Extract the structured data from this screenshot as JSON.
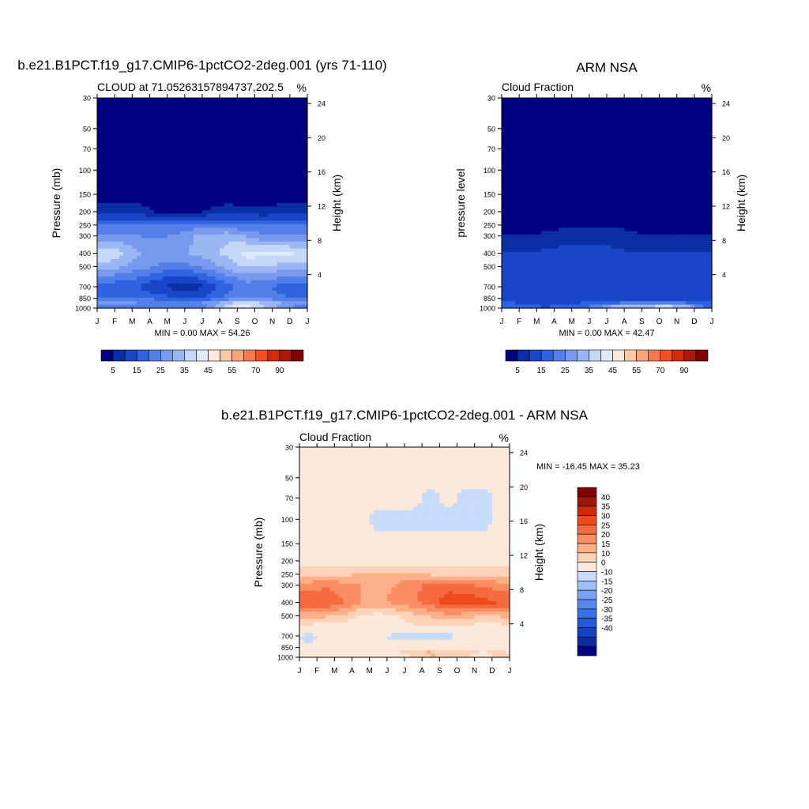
{
  "colors": {
    "abs_levels": [
      "#000080",
      "#0a2fa5",
      "#1846c6",
      "#2f63e0",
      "#527fe8",
      "#7799ee",
      "#9ab6f3",
      "#c6d8f8",
      "#e0ebfa",
      "#fde9d9",
      "#fcc9a8",
      "#fba47c",
      "#f77a4f",
      "#f54d24",
      "#d52b0a",
      "#a81a0a",
      "#7f0000"
    ],
    "diff_levels": [
      "#000080",
      "#0b2da0",
      "#1442c0",
      "#2458d8",
      "#3a6ee6",
      "#5888ee",
      "#7aa2f2",
      "#a1bff6",
      "#c7dbfa",
      "#fde9d9",
      "#fdd2b6",
      "#fcb08a",
      "#f98d63",
      "#f56b3f",
      "#ec4a1b",
      "#c82d08",
      "#9a1808",
      "#7f0000"
    ]
  },
  "panels": {
    "left": {
      "title": "b.e21.B1PCT.f19_g17.CMIP6-1pctCO2-2deg.001 (yrs 71-110)",
      "left_string": "CLOUD at 71.05263157894737,202.5",
      "right_string": "%",
      "ylabel": "Pressure (mb)",
      "ylabel_right": "Height (km)",
      "minmax": "MIN =   0.00 MAX =  54.26"
    },
    "right": {
      "title": "ARM NSA",
      "left_string": "Cloud Fraction",
      "right_string": "%",
      "ylabel": "pressure level",
      "ylabel_right": "Height (km)",
      "minmax": "MIN =   0.00 MAX =  42.47"
    },
    "diff": {
      "title": "b.e21.B1PCT.f19_g17.CMIP6-1pctCO2-2deg.001 - ARM NSA",
      "left_string": "Cloud Fraction",
      "right_string": "%",
      "ylabel": "Pressure (mb)",
      "ylabel_right": "Height (km)",
      "minmax": "MIN = -16.45 MAX =  35.23"
    }
  },
  "chart_data": [
    {
      "type": "heatmap",
      "title": "b.e21.B1PCT.f19_g17.CMIP6-1pctCO2-2deg.001 (yrs 71-110)",
      "subtitle": "CLOUD at 71.05263157894737,202.5",
      "units": "%",
      "xlabel": "",
      "ylabel": "Pressure (mb)",
      "ylabel_right": "Height (km)",
      "x_ticks": [
        "J",
        "F",
        "M",
        "A",
        "M",
        "J",
        "J",
        "A",
        "S",
        "O",
        "N",
        "D",
        "J"
      ],
      "y_ticks_pressure": [
        30,
        50,
        70,
        100,
        150,
        200,
        250,
        300,
        400,
        500,
        700,
        850,
        1000
      ],
      "y_ticks_height": [
        4,
        8,
        12,
        16,
        20,
        24
      ],
      "y_scale": "log, reversed",
      "colorbar_labels": [
        "5",
        "15",
        "25",
        "35",
        "45",
        "55",
        "70",
        "90"
      ],
      "min": 0.0,
      "max": 54.26,
      "profile": {
        "pressure": [
          1000,
          900,
          850,
          700,
          600,
          500,
          400,
          300,
          250,
          200,
          150,
          100,
          30
        ],
        "values_Jan_to_Dec": [
          [
            22,
            24,
            24,
            23,
            22,
            21,
            26,
            42,
            44,
            36,
            28,
            22
          ],
          [
            26,
            26,
            25,
            24,
            24,
            24,
            26,
            33,
            37,
            33,
            30,
            27
          ],
          [
            20,
            20,
            20,
            18,
            15,
            14,
            17,
            22,
            25,
            24,
            21,
            20
          ],
          [
            17,
            16,
            14,
            10,
            8,
            7,
            12,
            18,
            22,
            21,
            18,
            17
          ],
          [
            24,
            22,
            20,
            16,
            14,
            14,
            19,
            24,
            28,
            27,
            25,
            24
          ],
          [
            33,
            30,
            27,
            24,
            23,
            24,
            28,
            32,
            36,
            35,
            33,
            33
          ],
          [
            39,
            36,
            30,
            28,
            28,
            31,
            33,
            37,
            42,
            42,
            41,
            40
          ],
          [
            25,
            26,
            25,
            24,
            26,
            30,
            32,
            34,
            30,
            26,
            26,
            25
          ],
          [
            20,
            20,
            20,
            20,
            21,
            22,
            22,
            21,
            20,
            20,
            20,
            20
          ],
          [
            7,
            8,
            7,
            4,
            3,
            3,
            6,
            8,
            7,
            6,
            8,
            8
          ],
          [
            2,
            2,
            2,
            1,
            1,
            1,
            1,
            1,
            1,
            1,
            1,
            2
          ],
          [
            0,
            0,
            0,
            0,
            0,
            0,
            0,
            0,
            0,
            0,
            0,
            0
          ],
          [
            0,
            0,
            0,
            0,
            0,
            0,
            0,
            0,
            0,
            0,
            0,
            0
          ]
        ]
      }
    },
    {
      "type": "heatmap",
      "title": "ARM NSA",
      "subtitle": "Cloud Fraction",
      "units": "%",
      "xlabel": "",
      "ylabel": "pressure level",
      "ylabel_right": "Height (km)",
      "x_ticks": [
        "J",
        "F",
        "M",
        "A",
        "M",
        "J",
        "J",
        "A",
        "S",
        "O",
        "N",
        "D",
        "J"
      ],
      "y_ticks_pressure": [
        30,
        50,
        70,
        100,
        150,
        200,
        250,
        300,
        400,
        500,
        700,
        850,
        1000
      ],
      "y_ticks_height": [
        4,
        8,
        12,
        16,
        20,
        24
      ],
      "y_scale": "log, reversed",
      "colorbar_labels": [
        "5",
        "15",
        "25",
        "35",
        "45",
        "55",
        "70",
        "90"
      ],
      "min": 0.0,
      "max": 42.47,
      "profile": {
        "pressure": [
          1000,
          950,
          900,
          850,
          700,
          600,
          500,
          400,
          300,
          250,
          200,
          150,
          100,
          30
        ],
        "values_Jan_to_Dec": [
          [
            14,
            14,
            13,
            15,
            17,
            22,
            35,
            38,
            40,
            42,
            36,
            20
          ],
          [
            18,
            17,
            16,
            17,
            18,
            24,
            30,
            32,
            30,
            32,
            28,
            20
          ],
          [
            14,
            13,
            12,
            12,
            13,
            18,
            14,
            18,
            16,
            18,
            16,
            14
          ],
          [
            13,
            12,
            11,
            10,
            11,
            14,
            12,
            13,
            12,
            12,
            12,
            12
          ],
          [
            14,
            13,
            11,
            10,
            11,
            13,
            12,
            12,
            11,
            12,
            12,
            13
          ],
          [
            13,
            14,
            13,
            11,
            12,
            12,
            12,
            12,
            12,
            12,
            13,
            13
          ],
          [
            12,
            12,
            13,
            12,
            12,
            13,
            12,
            12,
            11,
            12,
            12,
            12
          ],
          [
            10,
            10,
            11,
            12,
            12,
            11,
            11,
            10,
            10,
            10,
            10,
            10
          ],
          [
            5,
            5,
            6,
            7,
            8,
            9,
            8,
            6,
            5,
            5,
            5,
            5
          ],
          [
            2,
            2,
            3,
            4,
            4,
            4,
            4,
            3,
            2,
            2,
            2,
            2
          ],
          [
            1,
            1,
            1,
            1,
            2,
            2,
            2,
            1,
            1,
            1,
            1,
            1
          ],
          [
            0,
            0,
            0,
            0,
            1,
            1,
            1,
            0,
            0,
            0,
            0,
            0
          ],
          [
            0,
            0,
            0,
            0,
            0,
            0,
            0,
            0,
            0,
            0,
            0,
            0
          ],
          [
            0,
            0,
            0,
            0,
            0,
            0,
            0,
            0,
            0,
            0,
            0,
            0
          ]
        ]
      }
    },
    {
      "type": "heatmap",
      "title": "b.e21.B1PCT.f19_g17.CMIP6-1pctCO2-2deg.001 - ARM NSA",
      "subtitle": "Cloud Fraction",
      "units": "%",
      "xlabel": "",
      "ylabel": "Pressure (mb)",
      "ylabel_right": "Height (km)",
      "x_ticks": [
        "J",
        "F",
        "M",
        "A",
        "M",
        "J",
        "J",
        "A",
        "S",
        "O",
        "N",
        "D",
        "J"
      ],
      "y_ticks_pressure": [
        30,
        50,
        70,
        100,
        150,
        200,
        250,
        300,
        400,
        500,
        700,
        850,
        1000
      ],
      "y_ticks_height": [
        4,
        8,
        12,
        16,
        20,
        24
      ],
      "y_scale": "log, reversed",
      "colorbar_labels": [
        "40",
        "35",
        "30",
        "25",
        "20",
        "15",
        "10",
        "0",
        "-10",
        "-15",
        "-20",
        "-25",
        "-30",
        "-35",
        "-40"
      ],
      "min": -16.45,
      "max": 35.23,
      "profile": {
        "pressure": [
          1000,
          950,
          900,
          850,
          700,
          600,
          500,
          400,
          300,
          250,
          200,
          150,
          100,
          70,
          50,
          30
        ],
        "values_Jan_to_Dec": [
          [
            2,
            3,
            2,
            3,
            4,
            3,
            -8,
            4,
            3,
            2,
            -3,
            2
          ],
          [
            8,
            7,
            6,
            7,
            8,
            14,
            24,
            24,
            20,
            18,
            16,
            22
          ],
          [
            4,
            4,
            5,
            6,
            6,
            6,
            8,
            11,
            9,
            10,
            6,
            6
          ],
          [
            2,
            2,
            3,
            3,
            2,
            2,
            5,
            6,
            6,
            7,
            4,
            3
          ],
          [
            -3,
            2,
            3,
            2,
            2,
            -2,
            -3,
            -4,
            -3,
            2,
            2,
            2
          ],
          [
            8,
            7,
            6,
            5,
            4,
            6,
            9,
            10,
            10,
            8,
            8,
            8
          ],
          [
            18,
            16,
            14,
            10,
            8,
            10,
            13,
            16,
            18,
            17,
            15,
            16
          ],
          [
            30,
            30,
            26,
            20,
            18,
            22,
            24,
            28,
            33,
            34,
            32,
            30
          ],
          [
            22,
            24,
            22,
            20,
            18,
            20,
            24,
            26,
            28,
            26,
            24,
            22
          ],
          [
            14,
            14,
            14,
            15,
            16,
            17,
            16,
            14,
            14,
            14,
            14,
            14
          ],
          [
            6,
            6,
            6,
            6,
            6,
            6,
            6,
            6,
            6,
            6,
            6,
            6
          ],
          [
            2,
            2,
            2,
            2,
            2,
            2,
            2,
            2,
            2,
            2,
            2,
            2
          ],
          [
            2,
            2,
            2,
            2,
            -2,
            -2,
            -2,
            -2,
            -2,
            -2,
            -2,
            2
          ],
          [
            2,
            2,
            2,
            2,
            2,
            2,
            2,
            -2,
            2,
            -2,
            -2,
            2
          ],
          [
            2,
            2,
            2,
            2,
            2,
            2,
            2,
            2,
            2,
            2,
            2,
            2
          ],
          [
            2,
            2,
            2,
            2,
            2,
            2,
            2,
            2,
            2,
            2,
            2,
            2
          ]
        ]
      }
    }
  ]
}
